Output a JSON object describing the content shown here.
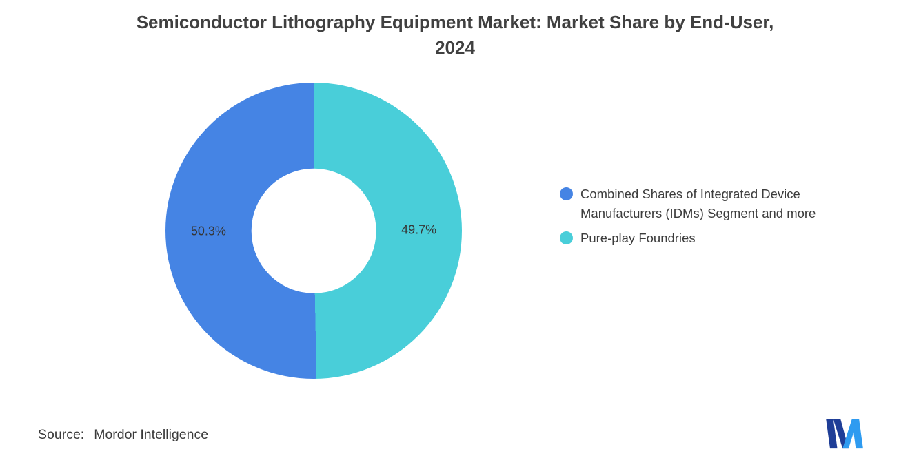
{
  "header": {
    "title_lines": [
      "Semiconductor Lithography Equipment Market: Market Share by End-User,",
      "2024"
    ]
  },
  "chart_data": {
    "type": "pie",
    "subtype": "donut",
    "title": "Semiconductor Lithography Equipment Market: Market Share by End-User, 2024",
    "segments": [
      {
        "label": "Pure-play Foundries",
        "value": 49.7,
        "display_label": "49.7%",
        "color": "#49CED9"
      },
      {
        "label": "Combined Shares of Integrated Device Manufacturers (IDMs) Segment and more",
        "value": 50.3,
        "display_label": "50.3%",
        "color": "#4584E4"
      }
    ],
    "start_angle_deg": 0,
    "direction": "clockwise",
    "donut_hole_ratio": 0.42,
    "legend_position": "right",
    "background": "#ffffff"
  },
  "legend": {
    "items": [
      {
        "label": "Combined Shares of Integrated Device Manufacturers (IDMs) Segment and more",
        "color": "#4584E4"
      },
      {
        "label": "Pure-play Foundries",
        "color": "#49CED9"
      }
    ]
  },
  "source": {
    "label": "Source:",
    "value": "Mordor Intelligence"
  },
  "logo": {
    "name": "mordor-intelligence-logo",
    "colors": {
      "navy": "#1F3E97",
      "blue": "#2E9BF0"
    }
  }
}
